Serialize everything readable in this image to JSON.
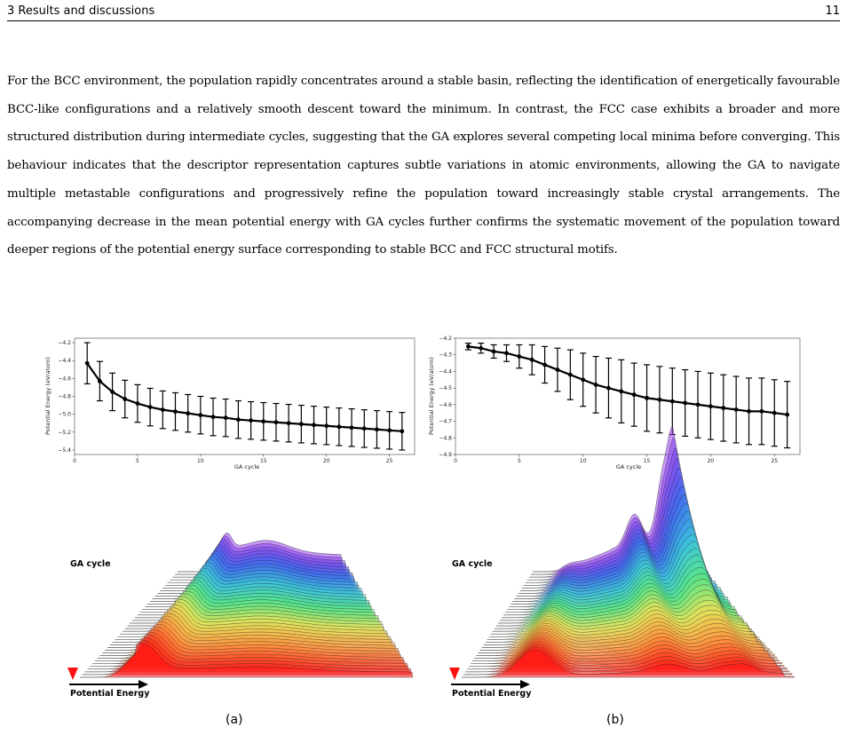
{
  "header": {
    "section": "3 Results and discussions",
    "page_number": "11"
  },
  "body": {
    "paragraph": "For the BCC environment, the population rapidly concentrates around a stable basin, reflecting the identification of energetically favourable BCC-like configurations and a relatively smooth descent toward the minimum. In contrast, the FCC case exhibits a broader and more structured distribution during intermediate cycles, suggesting that the GA explores several competing local minima before converging. This behaviour indicates that the descriptor representation captures subtle variations in atomic environments, allowing the GA to navigate multiple metastable configurations and progressively refine the population toward increasingly stable crystal arrangements. The accompanying decrease in the mean potential energy with GA cycles further confirms the systematic movement of the population toward deeper regions of the potential energy surface corresponding to stable BCC and FCC structural motifs."
  },
  "figure": {
    "panel_a_caption": "(a)",
    "panel_b_caption": "(b)",
    "ridge_y_label": "GA cycle",
    "ridge_x_label": "Potential Energy"
  },
  "chart_data": [
    {
      "type": "line",
      "panel": "a",
      "xlabel": "GA cycle",
      "ylabel": "Potential Energy (eV/atom)",
      "xlim": [
        0,
        27
      ],
      "ylim": [
        -5.45,
        -4.15
      ],
      "xticks": [
        "0",
        "5",
        "10",
        "15",
        "20",
        "25"
      ],
      "yticks": [
        "−4.2",
        "−4.4",
        "−4.6",
        "−4.8",
        "−5.0",
        "−5.2",
        "−5.4"
      ],
      "x": [
        1,
        2,
        3,
        4,
        5,
        6,
        7,
        8,
        9,
        10,
        11,
        12,
        13,
        14,
        15,
        16,
        17,
        18,
        19,
        20,
        21,
        22,
        23,
        24,
        25,
        26
      ],
      "y": [
        -4.43,
        -4.63,
        -4.75,
        -4.83,
        -4.88,
        -4.92,
        -4.95,
        -4.97,
        -4.99,
        -5.01,
        -5.03,
        -5.04,
        -5.06,
        -5.07,
        -5.08,
        -5.09,
        -5.1,
        -5.11,
        -5.12,
        -5.13,
        -5.14,
        -5.15,
        -5.16,
        -5.17,
        -5.18,
        -5.19
      ],
      "error": [
        0.23,
        0.22,
        0.21,
        0.21,
        0.21,
        0.21,
        0.21,
        0.21,
        0.21,
        0.21,
        0.21,
        0.21,
        0.21,
        0.21,
        0.21,
        0.21,
        0.21,
        0.21,
        0.21,
        0.21,
        0.21,
        0.21,
        0.21,
        0.21,
        0.21,
        0.21
      ]
    },
    {
      "type": "line",
      "panel": "b",
      "xlabel": "GA cycle",
      "ylabel": "Potential Energy (eV/atom)",
      "xlim": [
        0,
        27
      ],
      "ylim": [
        -4.9,
        -4.2
      ],
      "xticks": [
        "0",
        "5",
        "10",
        "15",
        "20",
        "25"
      ],
      "yticks": [
        "−4.2",
        "−4.3",
        "−4.4",
        "−4.5",
        "−4.6",
        "−4.7",
        "−4.8",
        "−4.9"
      ],
      "x": [
        1,
        2,
        3,
        4,
        5,
        6,
        7,
        8,
        9,
        10,
        11,
        12,
        13,
        14,
        15,
        16,
        17,
        18,
        19,
        20,
        21,
        22,
        23,
        24,
        25,
        26
      ],
      "y": [
        -4.25,
        -4.26,
        -4.28,
        -4.29,
        -4.31,
        -4.33,
        -4.36,
        -4.39,
        -4.42,
        -4.45,
        -4.48,
        -4.5,
        -4.52,
        -4.54,
        -4.56,
        -4.57,
        -4.58,
        -4.59,
        -4.6,
        -4.61,
        -4.62,
        -4.63,
        -4.64,
        -4.64,
        -4.65,
        -4.66
      ],
      "error": [
        0.02,
        0.03,
        0.04,
        0.05,
        0.07,
        0.09,
        0.11,
        0.13,
        0.15,
        0.16,
        0.17,
        0.18,
        0.19,
        0.19,
        0.2,
        0.2,
        0.2,
        0.2,
        0.2,
        0.2,
        0.2,
        0.2,
        0.2,
        0.2,
        0.2,
        0.2
      ]
    }
  ]
}
